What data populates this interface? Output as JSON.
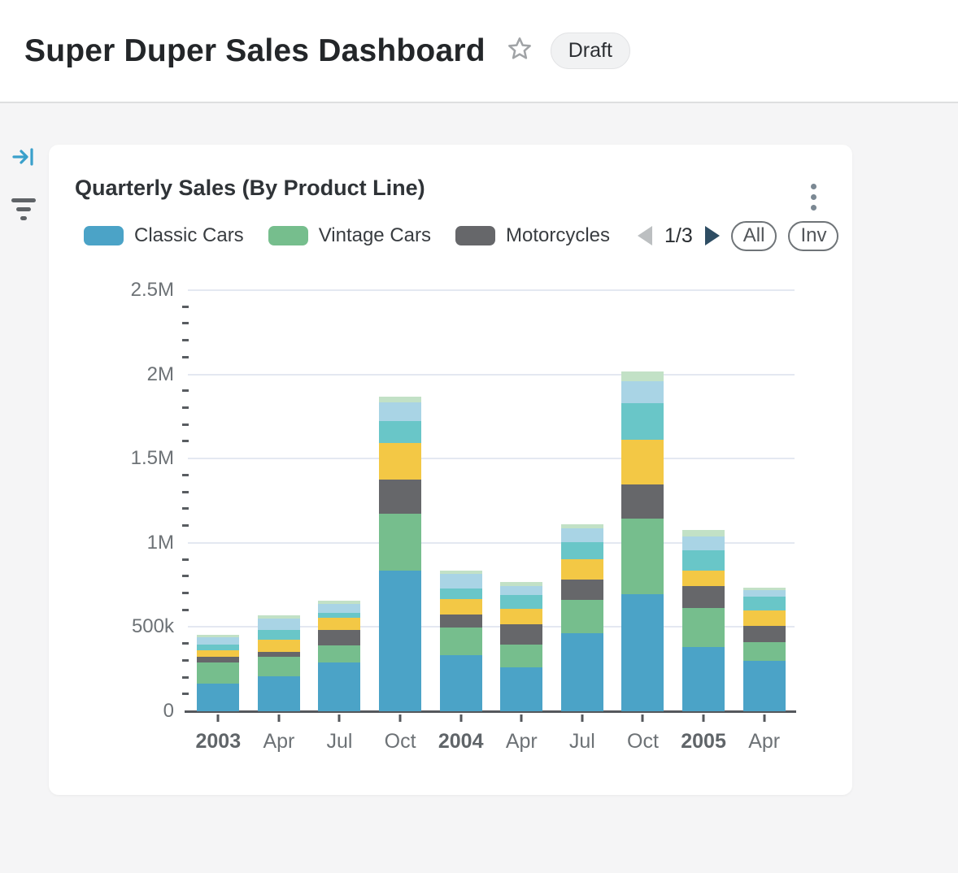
{
  "page": {
    "title": "Super Duper Sales Dashboard",
    "status_badge": "Draft"
  },
  "icons": {
    "star": "star-outline",
    "kebab": "vertical-ellipsis",
    "collapse_sidebar": "arrow-to-bar",
    "filter": "filter-bars",
    "prev_page": "left-triangle",
    "next_page": "right-triangle"
  },
  "card": {
    "title": "Quarterly Sales (By Product Line)"
  },
  "legend": {
    "visible_items": [
      "Classic Cars",
      "Vintage Cars",
      "Motorcycles"
    ],
    "page_indicator": "1/3",
    "all_label": "All",
    "invert_label": "Inv"
  },
  "chart_data": {
    "type": "bar",
    "stacked": true,
    "title": "Quarterly Sales (By Product Line)",
    "categories": [
      "2003",
      "Apr",
      "Jul",
      "Oct",
      "2004",
      "Apr",
      "Jul",
      "Oct",
      "2005",
      "Apr"
    ],
    "bold_category_pattern": "^\\d{4}$",
    "series": [
      {
        "name": "Classic Cars",
        "color": "#4BA3C7",
        "values": [
          165000,
          210000,
          290000,
          835000,
          335000,
          262000,
          464000,
          697000,
          382000,
          298000
        ]
      },
      {
        "name": "Vintage Cars",
        "color": "#76BE8D",
        "values": [
          125000,
          112000,
          100000,
          340000,
          160000,
          132000,
          198000,
          446000,
          230000,
          113000
        ]
      },
      {
        "name": "Motorcycles",
        "color": "#66676A",
        "values": [
          35000,
          32000,
          92000,
          200000,
          80000,
          121000,
          119000,
          206000,
          132000,
          97000
        ]
      },
      {
        "name": "Unlabeled (yellow, legend page 2)",
        "color": "#F3C845",
        "values": [
          38000,
          72000,
          74000,
          218000,
          90000,
          93000,
          122000,
          261000,
          89000,
          92000
        ]
      },
      {
        "name": "Unlabeled (teal, legend page 2)",
        "color": "#69C6C8",
        "values": [
          32000,
          56000,
          27000,
          128000,
          66000,
          84000,
          100000,
          221000,
          121000,
          80000
        ]
      },
      {
        "name": "Unlabeled (light blue, legend page 2)",
        "color": "#A9D4E5",
        "values": [
          45000,
          69000,
          56000,
          113000,
          86000,
          53000,
          84000,
          130000,
          85000,
          38000
        ]
      },
      {
        "name": "Unlabeled (light green, legend page 3)",
        "color": "#C2E1C6",
        "values": [
          15000,
          19000,
          19000,
          34000,
          19000,
          24000,
          24000,
          56000,
          37000,
          14000
        ]
      }
    ],
    "y_ticks": [
      {
        "label": "0",
        "value": 0
      },
      {
        "label": "500k",
        "value": 500000
      },
      {
        "label": "1M",
        "value": 1000000
      },
      {
        "label": "1.5M",
        "value": 1500000
      },
      {
        "label": "2M",
        "value": 2000000
      },
      {
        "label": "2.5M",
        "value": 2500000
      }
    ],
    "y_major_step": 500000,
    "y_minor_step": 100000,
    "ylim": [
      0,
      2500000
    ],
    "grid": "horizontal-major",
    "legend_position": "top",
    "legend_pages": 3,
    "legend_current_page": 1
  }
}
